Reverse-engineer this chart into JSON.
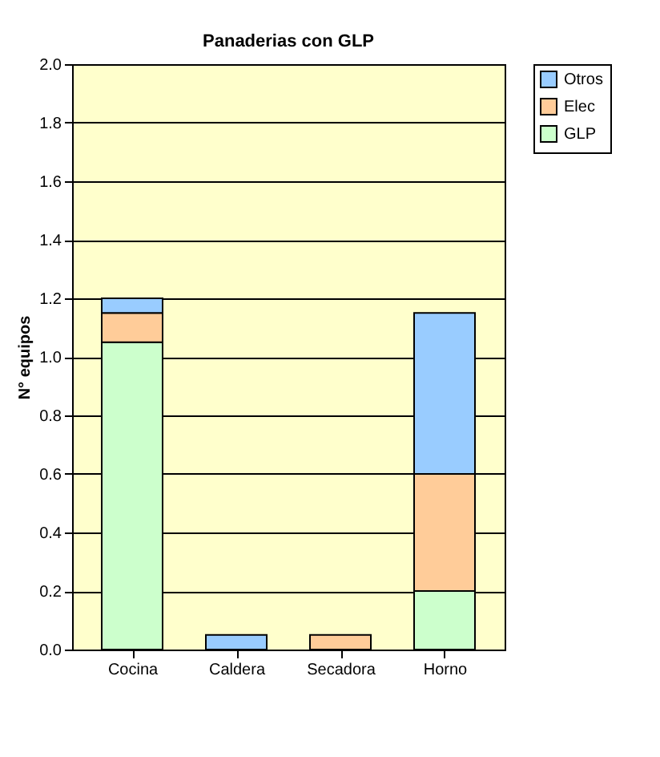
{
  "chart_data": {
    "type": "bar",
    "title": "Panaderias con GLP",
    "ylabel": "N° equipos",
    "categories": [
      "Cocina",
      "Caldera",
      "Secadora",
      "Horno"
    ],
    "stacked": true,
    "series": [
      {
        "name": "GLP",
        "color": "#ccffcc",
        "values": [
          1.05,
          0,
          0,
          0.2
        ]
      },
      {
        "name": "Elec",
        "color": "#ffcc99",
        "values": [
          0.1,
          0,
          0.05,
          0.4
        ]
      },
      {
        "name": "Otros",
        "color": "#99ccff",
        "values": [
          0.05,
          0.05,
          0,
          0.55
        ]
      }
    ],
    "ylim": [
      0,
      2
    ],
    "yticks": [
      {
        "value": 0,
        "label": "0.0"
      },
      0.2,
      0.4,
      0.6,
      0.8,
      {
        "value": 1,
        "label": "1.0"
      },
      1.2,
      1.4,
      1.6,
      1.8,
      {
        "value": 2,
        "label": "2.0"
      }
    ],
    "grid": "y",
    "legend": "right"
  }
}
